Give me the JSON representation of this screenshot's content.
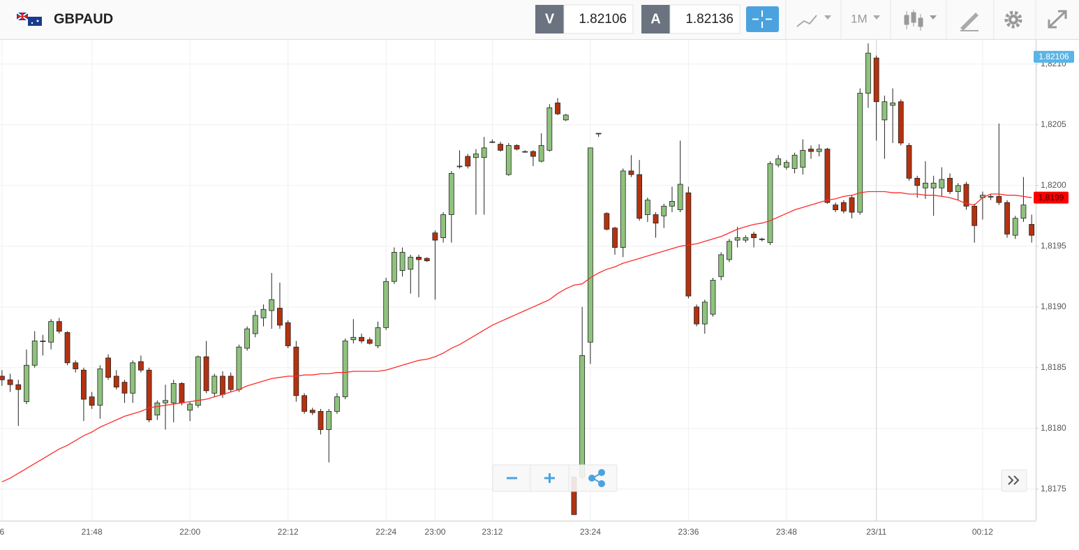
{
  "toolbar": {
    "symbol": "GBPAUD",
    "sell_label": "V",
    "sell_price": 1.82106,
    "buy_label": "A",
    "buy_price": 1.82136,
    "timeframe": "1M"
  },
  "chart_data": {
    "type": "candlestick",
    "categories": [
      "6",
      null,
      null,
      null,
      null,
      null,
      null,
      null,
      null,
      null,
      null,
      "21:48",
      null,
      null,
      null,
      null,
      null,
      null,
      null,
      null,
      null,
      null,
      null,
      "22:00",
      null,
      null,
      null,
      null,
      null,
      null,
      null,
      null,
      null,
      null,
      null,
      "22:12",
      null,
      null,
      null,
      null,
      null,
      null,
      null,
      null,
      null,
      null,
      null,
      "22:24",
      null,
      null,
      null,
      null,
      null,
      "23:00",
      null,
      null,
      null,
      null,
      null,
      null,
      "23:12",
      null,
      null,
      null,
      null,
      null,
      null,
      null,
      null,
      null,
      null,
      null,
      "23:24",
      null,
      null,
      null,
      null,
      null,
      null,
      null,
      null,
      null,
      null,
      null,
      "23:36",
      null,
      null,
      null,
      null,
      null,
      null,
      null,
      null,
      null,
      null,
      null,
      "23:48",
      null,
      null,
      null,
      null,
      null,
      null,
      null,
      null,
      null,
      null,
      "23/11",
      null,
      null,
      null,
      null,
      null,
      null,
      null,
      null,
      null,
      null,
      null,
      null,
      "00:12",
      null,
      null,
      null,
      null,
      null,
      null
    ],
    "open": [
      1.81843,
      1.8184,
      1.81836,
      1.81822,
      1.81852,
      1.81872,
      1.81871,
      1.81888,
      1.81879,
      1.81854,
      1.81848,
      1.81826,
      1.81819,
      1.81858,
      1.81843,
      1.81838,
      1.81829,
      1.81855,
      1.81848,
      1.81811,
      1.81821,
      1.81821,
      1.81837,
      1.81815,
      1.81819,
      1.81859,
      1.81829,
      1.81843,
      1.81843,
      1.81832,
      1.81866,
      1.81878,
      1.81891,
      1.81897,
      1.81899,
      1.81887,
      1.81867,
      1.81827,
      1.81815,
      1.81814,
      1.81799,
      1.81814,
      1.81826,
      1.81873,
      1.81875,
      1.81873,
      1.81868,
      1.81883,
      1.81921,
      1.8193,
      1.81931,
      1.81941,
      1.8194,
      1.81961,
      1.81957,
      1.81976,
      1.82016,
      1.82024,
      1.82023,
      1.82023,
      1.82036,
      1.82034,
      1.82009,
      1.82033,
      1.82028,
      1.82028,
      1.8202,
      1.82029,
      1.82068,
      1.82054,
      1.8176,
      1.8176,
      1.81871,
      1.82043,
      1.81977,
      1.81965,
      1.81949,
      1.82012,
      1.82009,
      1.81976,
      1.81976,
      1.81975,
      1.81983,
      1.8198,
      1.81994,
      1.819,
      1.81886,
      1.81894,
      1.81925,
      1.81939,
      1.81955,
      1.81955,
      1.8196,
      1.81956,
      1.81953,
      1.82017,
      1.82015,
      1.82014,
      1.82015,
      1.8203,
      1.82028,
      1.8203,
      1.81984,
      1.81986,
      1.8199,
      1.81978,
      1.82076,
      1.82105,
      1.82054,
      1.82066,
      1.82069,
      1.82033,
      1.82006,
      1.81998,
      1.81998,
      1.81998,
      1.82006,
      1.81995,
      1.82001,
      1.81983,
      1.8199,
      1.81991,
      1.81991,
      1.81986,
      1.81959,
      1.81973,
      1.81968
    ],
    "high": [
      1.81848,
      1.81845,
      1.8184,
      1.81865,
      1.8188,
      1.81877,
      1.8189,
      1.81891,
      1.8188,
      1.81856,
      1.8185,
      1.8183,
      1.81852,
      1.81861,
      1.81848,
      1.8184,
      1.81856,
      1.8186,
      1.8185,
      1.81823,
      1.81836,
      1.8184,
      1.81838,
      1.81822,
      1.8186,
      1.81872,
      1.81845,
      1.81847,
      1.81846,
      1.81869,
      1.81884,
      1.81897,
      1.81902,
      1.81928,
      1.8192,
      1.81889,
      1.81872,
      1.81829,
      1.81817,
      1.81816,
      1.81816,
      1.81829,
      1.81874,
      1.8189,
      1.81878,
      1.81875,
      1.81888,
      1.81924,
      1.81949,
      1.81949,
      1.81943,
      1.81943,
      1.81941,
      1.81963,
      1.81978,
      1.82012,
      1.82029,
      1.82026,
      1.8203,
      1.8204,
      1.82038,
      1.82036,
      1.82035,
      1.82034,
      1.82029,
      1.82029,
      1.82043,
      1.82067,
      1.82072,
      1.82059,
      1.8176,
      1.819,
      1.82031,
      1.82043,
      1.81978,
      1.81966,
      1.82014,
      1.82025,
      1.82021,
      1.8199,
      1.81978,
      1.81985,
      1.81999,
      1.82037,
      1.81999,
      1.81902,
      1.81906,
      1.81924,
      1.81945,
      1.81956,
      1.81966,
      1.81959,
      1.81962,
      1.81957,
      1.8202,
      1.82025,
      1.82021,
      1.82027,
      1.82038,
      1.82033,
      1.82034,
      1.82031,
      1.81986,
      1.81988,
      1.81992,
      1.8208,
      1.82117,
      1.82107,
      1.82074,
      1.8208,
      1.82071,
      1.82035,
      1.82008,
      1.8202,
      1.82008,
      1.82015,
      1.8201,
      1.82002,
      1.82003,
      1.81985,
      1.81995,
      1.81993,
      1.82051,
      1.81988,
      1.81975,
      1.82007,
      1.81976
    ],
    "low": [
      1.81835,
      1.8183,
      1.81802,
      1.8182,
      1.8185,
      1.8186,
      1.81865,
      1.81878,
      1.81852,
      1.81846,
      1.81806,
      1.81816,
      1.81808,
      1.8184,
      1.81832,
      1.81821,
      1.81821,
      1.81846,
      1.81805,
      1.81807,
      1.81799,
      1.81805,
      1.81819,
      1.81806,
      1.81817,
      1.81829,
      1.81826,
      1.81825,
      1.8183,
      1.8183,
      1.81864,
      1.81875,
      1.81884,
      1.81882,
      1.81882,
      1.81866,
      1.81822,
      1.81812,
      1.81811,
      1.81795,
      1.81772,
      1.81812,
      1.81824,
      1.8187,
      1.8187,
      1.81869,
      1.81866,
      1.81881,
      1.81919,
      1.81925,
      1.81911,
      1.81908,
      1.81937,
      1.81906,
      1.81953,
      1.81953,
      1.82014,
      1.82014,
      1.81976,
      1.81976,
      1.82035,
      1.82028,
      1.82008,
      1.82029,
      1.82027,
      1.82016,
      1.82019,
      1.82028,
      1.82058,
      1.82053,
      1.81729,
      1.81758,
      1.81853,
      1.8204,
      1.81963,
      1.81943,
      1.81941,
      1.82007,
      1.81971,
      1.8197,
      1.81957,
      1.81965,
      1.81978,
      1.81978,
      1.81907,
      1.81884,
      1.81878,
      1.81892,
      1.81922,
      1.81937,
      1.81949,
      1.81953,
      1.81949,
      1.81954,
      1.81951,
      1.82015,
      1.82013,
      1.8201,
      1.82009,
      1.82022,
      1.82024,
      1.81985,
      1.81978,
      1.81977,
      1.81973,
      1.81976,
      1.82064,
      1.82037,
      1.82022,
      1.82035,
      1.82033,
      1.82004,
      1.8199,
      1.81989,
      1.81975,
      1.81991,
      1.81993,
      1.81988,
      1.8198,
      1.81953,
      1.81972,
      1.81988,
      1.81984,
      1.81957,
      1.81956,
      1.8197,
      1.81953
    ],
    "close": [
      1.8184,
      1.81836,
      1.81832,
      1.81852,
      1.81872,
      1.81872,
      1.81888,
      1.8188,
      1.81854,
      1.81849,
      1.81824,
      1.81819,
      1.81849,
      1.81842,
      1.81834,
      1.81829,
      1.81854,
      1.81848,
      1.81807,
      1.81821,
      1.81823,
      1.81837,
      1.81821,
      1.8182,
      1.81859,
      1.81831,
      1.81843,
      1.81828,
      1.81832,
      1.81867,
      1.81882,
      1.81893,
      1.81898,
      1.81906,
      1.81885,
      1.81868,
      1.81827,
      1.81814,
      1.81813,
      1.81799,
      1.81814,
      1.81826,
      1.81872,
      1.81875,
      1.81872,
      1.8187,
      1.81883,
      1.81921,
      1.81945,
      1.81945,
      1.81941,
      1.81939,
      1.81938,
      1.81955,
      1.81976,
      1.8201,
      1.82016,
      1.82016,
      1.82026,
      1.82031,
      1.82036,
      1.82029,
      1.82033,
      1.8203,
      1.82028,
      1.82024,
      1.82033,
      1.82064,
      1.82059,
      1.82058,
      1.81729,
      1.8186,
      1.82031,
      1.82043,
      1.81964,
      1.81949,
      1.82012,
      1.82009,
      1.81973,
      1.81988,
      1.81969,
      1.81983,
      1.81987,
      1.82001,
      1.81909,
      1.81886,
      1.81904,
      1.81922,
      1.81943,
      1.81954,
      1.81957,
      1.81957,
      1.81957,
      1.81956,
      1.82018,
      1.82022,
      1.82019,
      1.82025,
      1.82029,
      1.82028,
      1.8203,
      1.81986,
      1.8198,
      1.81979,
      1.81978,
      1.82076,
      1.82109,
      1.82069,
      1.82069,
      1.82068,
      1.82035,
      1.82006,
      1.82,
      1.82002,
      1.82002,
      1.82005,
      1.81995,
      1.82,
      1.81983,
      1.81967,
      1.81992,
      1.81991,
      1.81986,
      1.8196,
      1.81973,
      1.81984,
      1.81959
    ],
    "up_color": "#8fc27c",
    "down_color": "#b5320f",
    "moving_average": {
      "color": "#ff2a2a",
      "values": [
        1.81756,
        1.81759,
        1.81763,
        1.81767,
        1.81771,
        1.81775,
        1.81779,
        1.81783,
        1.81786,
        1.8179,
        1.81794,
        1.81797,
        1.81801,
        1.81804,
        1.81807,
        1.8181,
        1.81812,
        1.81814,
        1.81817,
        1.81818,
        1.81819,
        1.8182,
        1.81821,
        1.81822,
        1.81823,
        1.81824,
        1.81826,
        1.81828,
        1.8183,
        1.81832,
        1.81835,
        1.81837,
        1.81839,
        1.81841,
        1.81842,
        1.81843,
        1.81843,
        1.81844,
        1.81844,
        1.81845,
        1.81845,
        1.81846,
        1.81846,
        1.81847,
        1.81847,
        1.81847,
        1.81847,
        1.81848,
        1.8185,
        1.81852,
        1.81854,
        1.81856,
        1.81857,
        1.81859,
        1.81862,
        1.81866,
        1.81869,
        1.81873,
        1.81877,
        1.81881,
        1.81885,
        1.81888,
        1.81891,
        1.81894,
        1.81897,
        1.819,
        1.81903,
        1.81906,
        1.81911,
        1.81915,
        1.81918,
        1.81919,
        1.81924,
        1.81928,
        1.81931,
        1.81933,
        1.81936,
        1.81938,
        1.8194,
        1.81942,
        1.81944,
        1.81946,
        1.81948,
        1.8195,
        1.81951,
        1.81952,
        1.81954,
        1.81956,
        1.81958,
        1.81961,
        1.81964,
        1.81966,
        1.81968,
        1.81969,
        1.81971,
        1.81974,
        1.81977,
        1.8198,
        1.81982,
        1.81984,
        1.81986,
        1.81988,
        1.81989,
        1.81991,
        1.81992,
        1.81994,
        1.81995,
        1.81995,
        1.81995,
        1.81994,
        1.81994,
        1.81993,
        1.81993,
        1.81992,
        1.81992,
        1.81991,
        1.8199,
        1.81988,
        1.81985,
        1.81984,
        1.8199,
        1.81993,
        1.81993,
        1.81992,
        1.81992,
        1.81991,
        1.8199
      ]
    },
    "ylim": [
      1.81724,
      1.8212
    ],
    "yticks": [
      {
        "value": 1.8175,
        "label": "1,8175"
      },
      {
        "value": 1.818,
        "label": "1,8180"
      },
      {
        "value": 1.8185,
        "label": "1,8185"
      },
      {
        "value": 1.819,
        "label": "1,8190"
      },
      {
        "value": 1.8195,
        "label": "1,8195"
      },
      {
        "value": 1.82,
        "label": "1,8200"
      },
      {
        "value": 1.8205,
        "label": "1,8205"
      },
      {
        "value": 1.821,
        "label": "1,8210"
      }
    ],
    "grid": true,
    "price_marker": {
      "value": 1.82106,
      "color": "#5ab4e5"
    },
    "average_marker": {
      "value": 1.8199,
      "label": "1,8199",
      "color": "#ff0000"
    }
  }
}
